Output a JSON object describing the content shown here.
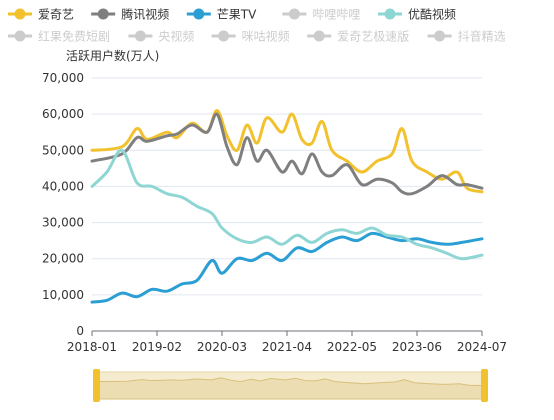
{
  "chart_data": {
    "type": "line",
    "ylabel": "活跃用户数(万人)",
    "ylim": [
      0,
      70000
    ],
    "yticks": [
      0,
      10000,
      20000,
      30000,
      40000,
      50000,
      60000,
      70000
    ],
    "ytick_labels": [
      "0",
      "10,000",
      "20,000",
      "30,000",
      "40,000",
      "50,000",
      "60,000",
      "70,000"
    ],
    "xticks": [
      "2018-01",
      "2019-02",
      "2020-03",
      "2021-04",
      "2022-05",
      "2023-06",
      "2024-07"
    ],
    "x_start": "2018-01",
    "x_end": "2024-07",
    "grid": "horizontal",
    "legend_position": "top",
    "legend": [
      {
        "name": "爱奇艺",
        "color": "#f2c12e",
        "active": true
      },
      {
        "name": "腾讯视频",
        "color": "#7f7f7f",
        "active": true
      },
      {
        "name": "芒果TV",
        "color": "#2b9fd3",
        "active": true
      },
      {
        "name": "哔哩哔哩",
        "color": "#cccccc",
        "active": false
      },
      {
        "name": "优酷视频",
        "color": "#8ed6d3",
        "active": true
      },
      {
        "name": "红果免费短剧",
        "color": "#cccccc",
        "active": false
      },
      {
        "name": "央视频",
        "color": "#cccccc",
        "active": false
      },
      {
        "name": "咪咕视频",
        "color": "#cccccc",
        "active": false
      },
      {
        "name": "爱奇艺极速版",
        "color": "#cccccc",
        "active": false
      },
      {
        "name": "抖音精选",
        "color": "#cccccc",
        "active": false
      }
    ],
    "series": [
      {
        "name": "爱奇艺",
        "color": "#f2c12e",
        "points": [
          [
            "2018-01",
            50000
          ],
          [
            "2018-07",
            51000
          ],
          [
            "2018-10",
            56000
          ],
          [
            "2018-12",
            53000
          ],
          [
            "2019-04",
            55000
          ],
          [
            "2019-06",
            53500
          ],
          [
            "2019-09",
            57500
          ],
          [
            "2019-12",
            55000
          ],
          [
            "2020-02",
            61000
          ],
          [
            "2020-04",
            54000
          ],
          [
            "2020-06",
            50000
          ],
          [
            "2020-08",
            57000
          ],
          [
            "2020-10",
            52000
          ],
          [
            "2020-12",
            59000
          ],
          [
            "2021-03",
            55000
          ],
          [
            "2021-05",
            60000
          ],
          [
            "2021-07",
            53000
          ],
          [
            "2021-09",
            52000
          ],
          [
            "2021-11",
            58000
          ],
          [
            "2022-01",
            50000
          ],
          [
            "2022-04",
            47000
          ],
          [
            "2022-07",
            44000
          ],
          [
            "2022-10",
            47000
          ],
          [
            "2023-01",
            49000
          ],
          [
            "2023-03",
            56000
          ],
          [
            "2023-05",
            47000
          ],
          [
            "2023-08",
            44000
          ],
          [
            "2023-11",
            42000
          ],
          [
            "2024-02",
            44000
          ],
          [
            "2024-04",
            39500
          ],
          [
            "2024-07",
            38500
          ]
        ]
      },
      {
        "name": "腾讯视频",
        "color": "#7f7f7f",
        "points": [
          [
            "2018-01",
            47000
          ],
          [
            "2018-07",
            49000
          ],
          [
            "2018-10",
            53500
          ],
          [
            "2018-12",
            52500
          ],
          [
            "2019-04",
            54000
          ],
          [
            "2019-06",
            54500
          ],
          [
            "2019-09",
            57000
          ],
          [
            "2019-12",
            55000
          ],
          [
            "2020-02",
            60000
          ],
          [
            "2020-04",
            51000
          ],
          [
            "2020-06",
            46000
          ],
          [
            "2020-08",
            53500
          ],
          [
            "2020-10",
            47000
          ],
          [
            "2020-12",
            50000
          ],
          [
            "2021-03",
            44000
          ],
          [
            "2021-05",
            47000
          ],
          [
            "2021-07",
            43500
          ],
          [
            "2021-09",
            49000
          ],
          [
            "2021-11",
            44000
          ],
          [
            "2022-01",
            43000
          ],
          [
            "2022-04",
            46000
          ],
          [
            "2022-07",
            40500
          ],
          [
            "2022-10",
            42000
          ],
          [
            "2023-01",
            41000
          ],
          [
            "2023-03",
            38500
          ],
          [
            "2023-05",
            38000
          ],
          [
            "2023-08",
            40000
          ],
          [
            "2023-11",
            43000
          ],
          [
            "2024-02",
            40500
          ],
          [
            "2024-04",
            40500
          ],
          [
            "2024-07",
            39500
          ]
        ]
      },
      {
        "name": "芒果TV",
        "color": "#2b9fd3",
        "points": [
          [
            "2018-01",
            8000
          ],
          [
            "2018-04",
            8500
          ],
          [
            "2018-07",
            10500
          ],
          [
            "2018-10",
            9500
          ],
          [
            "2019-01",
            11500
          ],
          [
            "2019-04",
            11000
          ],
          [
            "2019-07",
            13000
          ],
          [
            "2019-10",
            14000
          ],
          [
            "2020-01",
            19500
          ],
          [
            "2020-03",
            16000
          ],
          [
            "2020-06",
            20000
          ],
          [
            "2020-09",
            19500
          ],
          [
            "2020-12",
            21500
          ],
          [
            "2021-03",
            19500
          ],
          [
            "2021-06",
            23000
          ],
          [
            "2021-09",
            22000
          ],
          [
            "2021-12",
            24500
          ],
          [
            "2022-03",
            26000
          ],
          [
            "2022-06",
            25000
          ],
          [
            "2022-09",
            27000
          ],
          [
            "2022-12",
            26000
          ],
          [
            "2023-03",
            25000
          ],
          [
            "2023-06",
            25500
          ],
          [
            "2023-09",
            24500
          ],
          [
            "2023-12",
            24000
          ],
          [
            "2024-03",
            24500
          ],
          [
            "2024-07",
            25500
          ]
        ]
      },
      {
        "name": "优酷视频",
        "color": "#8ed6d3",
        "points": [
          [
            "2018-01",
            40000
          ],
          [
            "2018-04",
            44000
          ],
          [
            "2018-07",
            50000
          ],
          [
            "2018-10",
            41000
          ],
          [
            "2019-01",
            40000
          ],
          [
            "2019-04",
            38000
          ],
          [
            "2019-07",
            37000
          ],
          [
            "2019-10",
            34500
          ],
          [
            "2020-01",
            32500
          ],
          [
            "2020-03",
            28500
          ],
          [
            "2020-06",
            25500
          ],
          [
            "2020-09",
            24500
          ],
          [
            "2020-12",
            26000
          ],
          [
            "2021-03",
            24000
          ],
          [
            "2021-06",
            26500
          ],
          [
            "2021-09",
            24500
          ],
          [
            "2021-12",
            27000
          ],
          [
            "2022-03",
            28000
          ],
          [
            "2022-06",
            27000
          ],
          [
            "2022-09",
            28500
          ],
          [
            "2022-12",
            26500
          ],
          [
            "2023-03",
            26000
          ],
          [
            "2023-06",
            24000
          ],
          [
            "2023-09",
            23000
          ],
          [
            "2023-12",
            21500
          ],
          [
            "2024-03",
            20000
          ],
          [
            "2024-07",
            21000
          ]
        ]
      }
    ]
  }
}
